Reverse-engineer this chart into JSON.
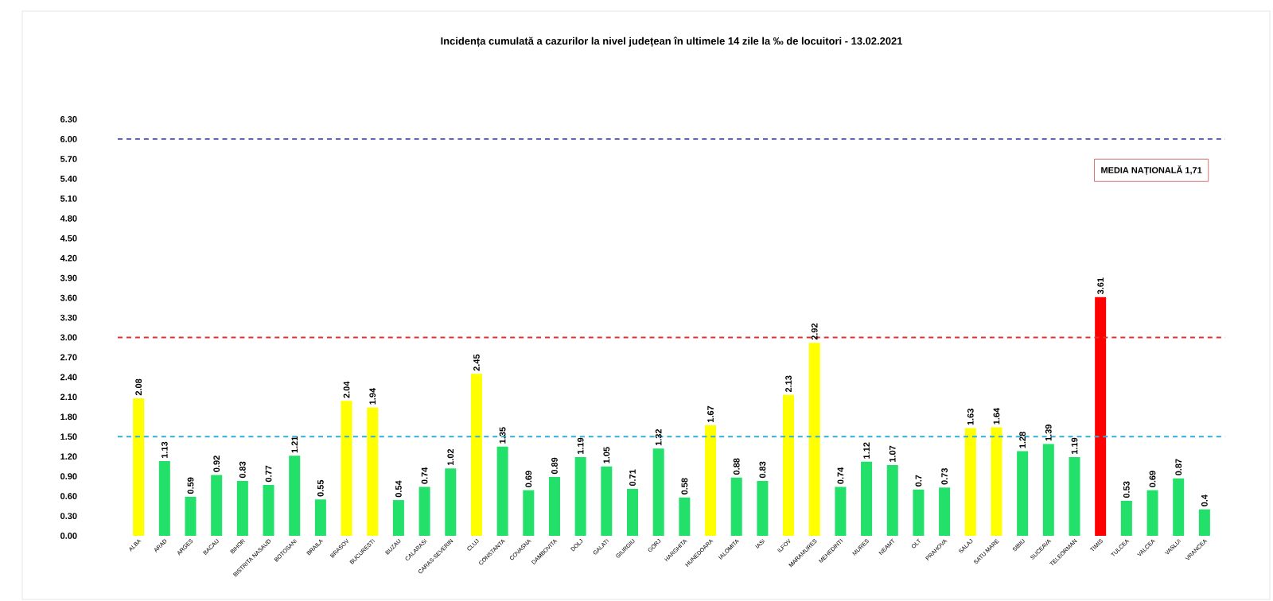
{
  "chart_data": {
    "type": "bar",
    "title": "Incidența cumulată a cazurilor la nivel județean în ultimele 14 zile la ‰ de locuitori - 13.02.2021",
    "categories": [
      "ALBA",
      "ARAD",
      "ARGES",
      "BACAU",
      "BIHOR",
      "BISTRITA NASAUD",
      "BOTOSANI",
      "BRAILA",
      "BRASOV",
      "BUCURESTI",
      "BUZAU",
      "CALARASI",
      "CARAS-SEVERIN",
      "CLUJ",
      "CONSTANTA",
      "COVASNA",
      "DAMBOVITA",
      "DOLJ",
      "GALATI",
      "GIURGIU",
      "GORJ",
      "HARGHITA",
      "HUNEDOARA",
      "IALOMITA",
      "IASI",
      "ILFOV",
      "MARAMURES",
      "MEHEDINTI",
      "MURES",
      "NEAMT",
      "OLT",
      "PRAHOVA",
      "SALAJ",
      "SATU MARE",
      "SIBIU",
      "SUCEAVA",
      "TELEORMAN",
      "TIMIS",
      "TULCEA",
      "VALCEA",
      "VASLUI",
      "VRANCEA"
    ],
    "values": [
      2.08,
      1.13,
      0.59,
      0.92,
      0.83,
      0.77,
      1.21,
      0.55,
      2.04,
      1.94,
      0.54,
      0.74,
      1.02,
      2.45,
      1.35,
      0.69,
      0.89,
      1.19,
      1.05,
      0.71,
      1.32,
      0.58,
      1.67,
      0.88,
      0.83,
      2.13,
      2.92,
      0.74,
      1.12,
      1.07,
      0.7,
      0.73,
      1.63,
      1.64,
      1.28,
      1.39,
      1.19,
      3.61,
      0.53,
      0.69,
      0.87,
      0.4
    ],
    "value_labels": [
      "2.08",
      "1.13",
      "0.59",
      "0.92",
      "0.83",
      "0.77",
      "1.21",
      "0.55",
      "2.04",
      "1.94",
      "0.54",
      "0.74",
      "1.02",
      "2.45",
      "1.35",
      "0.69",
      "0.89",
      "1.19",
      "1.05",
      "0.71",
      "1.32",
      "0.58",
      "1.67",
      "0.88",
      "0.83",
      "2.13",
      "2.92",
      "0.74",
      "1.12",
      "1.07",
      "0.7",
      "0.73",
      "1.63",
      "1.64",
      "1.28",
      "1.39",
      "1.19",
      "3.61",
      "0.53",
      "0.69",
      "0.87",
      "0.4"
    ],
    "colors": [
      "#ffff00",
      "#22e06a",
      "#22e06a",
      "#22e06a",
      "#22e06a",
      "#22e06a",
      "#22e06a",
      "#22e06a",
      "#ffff00",
      "#ffff00",
      "#22e06a",
      "#22e06a",
      "#22e06a",
      "#ffff00",
      "#22e06a",
      "#22e06a",
      "#22e06a",
      "#22e06a",
      "#22e06a",
      "#22e06a",
      "#22e06a",
      "#22e06a",
      "#ffff00",
      "#22e06a",
      "#22e06a",
      "#ffff00",
      "#ffff00",
      "#22e06a",
      "#22e06a",
      "#22e06a",
      "#22e06a",
      "#22e06a",
      "#ffff00",
      "#ffff00",
      "#22e06a",
      "#22e06a",
      "#22e06a",
      "#ff0000",
      "#22e06a",
      "#22e06a",
      "#22e06a",
      "#22e06a"
    ],
    "ylim": [
      0,
      6.3
    ],
    "yticks": [
      {
        "value": 0,
        "label": "0.00"
      },
      {
        "value": 0.3,
        "label": "0.30"
      },
      {
        "value": 0.6,
        "label": "0.60"
      },
      {
        "value": 0.9,
        "label": "0.90"
      },
      {
        "value": 1.2,
        "label": "1.20"
      },
      {
        "value": 1.5,
        "label": "1.50"
      },
      {
        "value": 1.8,
        "label": "1.80"
      },
      {
        "value": 2.1,
        "label": "2.10"
      },
      {
        "value": 2.4,
        "label": "2.40"
      },
      {
        "value": 2.7,
        "label": "2.70"
      },
      {
        "value": 3.0,
        "label": "3.00"
      },
      {
        "value": 3.3,
        "label": "3.30"
      },
      {
        "value": 3.6,
        "label": "3.60"
      },
      {
        "value": 3.9,
        "label": "3.90"
      },
      {
        "value": 4.2,
        "label": "4.20"
      },
      {
        "value": 4.5,
        "label": "4.50"
      },
      {
        "value": 4.8,
        "label": "4.80"
      },
      {
        "value": 5.1,
        "label": "5.10"
      },
      {
        "value": 5.4,
        "label": "5.40"
      },
      {
        "value": 5.7,
        "label": "5.70"
      },
      {
        "value": 6.0,
        "label": "6.00"
      },
      {
        "value": 6.3,
        "label": "6.30"
      }
    ],
    "ref_lines": [
      {
        "axis": "y",
        "value": 6.0,
        "color": "#4848a8",
        "line_style": "dashed"
      },
      {
        "axis": "y",
        "value": 3.0,
        "color": "#e03030",
        "line_style": "dashed"
      },
      {
        "axis": "y",
        "value": 1.5,
        "color": "#30b0d8",
        "line_style": "dashed"
      }
    ],
    "annotations": [
      "MEDIA NAȚIONALĂ 1,71"
    ],
    "grid": false
  }
}
